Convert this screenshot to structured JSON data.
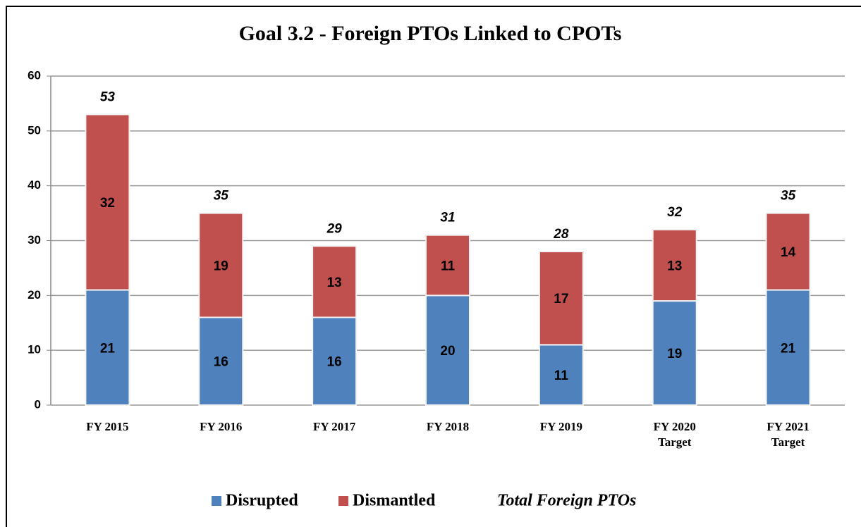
{
  "chart_data": {
    "type": "stacked_bar",
    "title": "Goal 3.2 - Foreign PTOs Linked to CPOTs",
    "categories": [
      "FY 2015",
      "FY 2016",
      "FY 2017",
      "FY 2018",
      "FY 2019",
      "FY 2020 Target",
      "FY 2021 Target"
    ],
    "series": [
      {
        "name": "Disrupted",
        "color": "#4f81bd",
        "values": [
          21,
          16,
          16,
          20,
          11,
          19,
          21
        ]
      },
      {
        "name": "Dismantled",
        "color": "#c0504d",
        "values": [
          32,
          19,
          13,
          11,
          17,
          13,
          14
        ]
      }
    ],
    "totals": {
      "name": "Total Foreign PTOs",
      "values": [
        53,
        35,
        29,
        31,
        28,
        32,
        35
      ]
    },
    "ylim": [
      0,
      60
    ],
    "yticks": [
      0,
      10,
      20,
      30,
      40,
      50,
      60
    ],
    "grid": true
  }
}
